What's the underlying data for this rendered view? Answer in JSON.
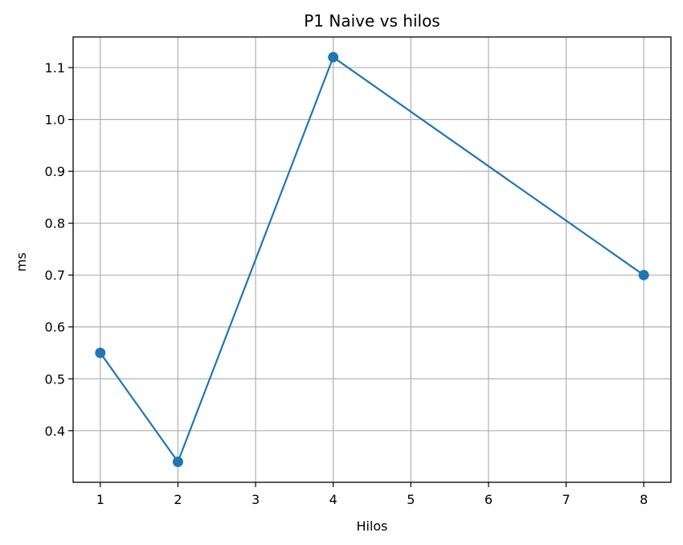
{
  "chart_data": {
    "type": "line",
    "title": "P1 Naive vs hilos",
    "xlabel": "Hilos",
    "ylabel": "ms",
    "x": [
      1,
      2,
      4,
      8
    ],
    "series": [
      {
        "values": [
          0.55,
          0.34,
          1.12,
          0.7
        ],
        "color": "#1f77b4",
        "marker": "circle"
      }
    ],
    "xticks": [
      1,
      2,
      3,
      4,
      5,
      6,
      7,
      8
    ],
    "yticks": [
      0.4,
      0.5,
      0.6,
      0.7,
      0.8,
      0.9,
      1.0,
      1.1
    ],
    "ytick_labels": [
      "0.4",
      "0.5",
      "0.6",
      "0.7",
      "0.8",
      "0.9",
      "1.0",
      "1.1"
    ],
    "xlim": [
      0.65,
      8.35
    ],
    "ylim": [
      0.3005,
      1.159
    ],
    "grid": true,
    "legend": "none"
  }
}
